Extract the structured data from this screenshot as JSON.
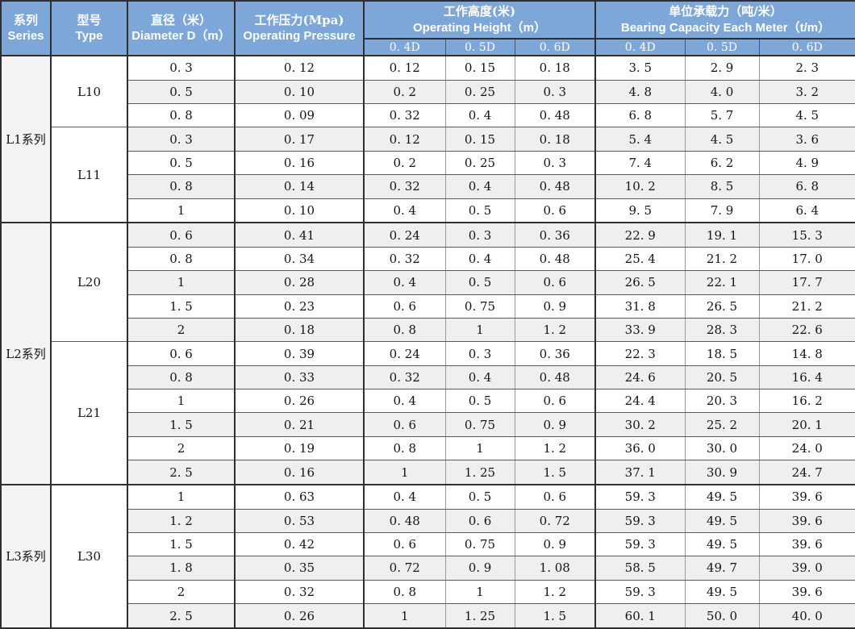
{
  "colors": {
    "header_bg": "#7da6d9",
    "header_text": "#ffffff",
    "row_alt": "#efefef",
    "series_col_bg": "#f3f3f3",
    "grid_line_minor": "#9a9a9a",
    "grid_line_row": "#5a5a5a",
    "grid_line_heavy": "#2f2f2f",
    "text": "#141414"
  },
  "table": {
    "header": {
      "series": {
        "zh": "系列",
        "en": "Series"
      },
      "type": {
        "zh": "型号",
        "en": "Type"
      },
      "diameter": {
        "zh": "直径（米）",
        "en": "Diameter D（m）"
      },
      "pressure": {
        "zh": "工作压力(Mpa)",
        "en": "Operating Pressure"
      },
      "height": {
        "zh": "工作高度(米)",
        "en": "Operating Height（m）",
        "subcols": [
          "0. 4D",
          "0. 5D",
          "0. 6D"
        ]
      },
      "capacity": {
        "zh": "单位承载力（吨/米）",
        "en": "Bearing Capacity Each  Meter（t/m）",
        "subcols": [
          "0. 4D",
          "0. 5D",
          "0. 6D"
        ]
      }
    },
    "groups": [
      {
        "series": "L1系列",
        "types": [
          {
            "type": "L10",
            "rows": [
              [
                "0. 3",
                "0. 12",
                "0. 12",
                "0. 15",
                "0. 18",
                "3. 5",
                "2. 9",
                "2. 3"
              ],
              [
                "0. 5",
                "0. 10",
                "0. 2",
                "0. 25",
                "0. 3",
                "4. 8",
                "4. 0",
                "3. 2"
              ],
              [
                "0. 8",
                "0. 09",
                "0. 32",
                "0. 4",
                "0. 48",
                "6. 8",
                "5. 7",
                "4. 5"
              ]
            ]
          },
          {
            "type": "L11",
            "rows": [
              [
                "0. 3",
                "0. 17",
                "0. 12",
                "0. 15",
                "0. 18",
                "5. 4",
                "4. 5",
                "3. 6"
              ],
              [
                "0. 5",
                "0. 16",
                "0. 2",
                "0. 25",
                "0. 3",
                "7. 4",
                "6. 2",
                "4. 9"
              ],
              [
                "0. 8",
                "0. 14",
                "0. 32",
                "0. 4",
                "0. 48",
                "10. 2",
                "8. 5",
                "6. 8"
              ],
              [
                "1",
                "0. 10",
                "0. 4",
                "0. 5",
                "0. 6",
                "9. 5",
                "7. 9",
                "6. 4"
              ]
            ]
          }
        ]
      },
      {
        "series": "L2系列",
        "types": [
          {
            "type": "L20",
            "rows": [
              [
                "0. 6",
                "0. 41",
                "0. 24",
                "0. 3",
                "0. 36",
                "22. 9",
                "19. 1",
                "15. 3"
              ],
              [
                "0. 8",
                "0. 34",
                "0. 32",
                "0. 4",
                "0. 48",
                "25. 4",
                "21. 2",
                "17. 0"
              ],
              [
                "1",
                "0. 28",
                "0. 4",
                "0. 5",
                "0. 6",
                "26. 5",
                "22. 1",
                "17. 7"
              ],
              [
                "1. 5",
                "0. 23",
                "0. 6",
                "0. 75",
                "0. 9",
                "31. 8",
                "26. 5",
                "21. 2"
              ],
              [
                "2",
                "0. 18",
                "0. 8",
                "1",
                "1. 2",
                "33. 9",
                "28. 3",
                "22. 6"
              ]
            ]
          },
          {
            "type": "L21",
            "rows": [
              [
                "0. 6",
                "0. 39",
                "0. 24",
                "0. 3",
                "0. 36",
                "22. 3",
                "18. 5",
                "14. 8"
              ],
              [
                "0. 8",
                "0. 33",
                "0. 32",
                "0. 4",
                "0. 48",
                "24. 6",
                "20. 5",
                "16. 4"
              ],
              [
                "1",
                "0. 26",
                "0. 4",
                "0. 5",
                "0. 6",
                "24. 4",
                "20. 3",
                "16. 2"
              ],
              [
                "1. 5",
                "0. 21",
                "0. 6",
                "0. 75",
                "0. 9",
                "30. 2",
                "25. 2",
                "20. 1"
              ],
              [
                "2",
                "0. 19",
                "0. 8",
                "1",
                "1. 2",
                "36. 0",
                "30. 0",
                "24. 0"
              ],
              [
                "2. 5",
                "0. 16",
                "1",
                "1. 25",
                "1. 5",
                "37. 1",
                "30. 9",
                "24. 7"
              ]
            ]
          }
        ]
      },
      {
        "series": "L3系列",
        "types": [
          {
            "type": "L30",
            "rows": [
              [
                "1",
                "0. 63",
                "0. 4",
                "0. 5",
                "0. 6",
                "59. 3",
                "49. 5",
                "39. 6"
              ],
              [
                "1. 2",
                "0. 53",
                "0. 48",
                "0. 6",
                "0. 72",
                "59. 3",
                "49. 5",
                "39. 6"
              ],
              [
                "1. 5",
                "0. 42",
                "0. 6",
                "0. 75",
                "0. 9",
                "59. 3",
                "49. 5",
                "39. 6"
              ],
              [
                "1. 8",
                "0. 35",
                "0. 72",
                "0. 9",
                "1. 08",
                "58. 5",
                "49. 7",
                "39. 0"
              ],
              [
                "2",
                "0. 32",
                "0. 8",
                "1",
                "1. 2",
                "59. 3",
                "49. 5",
                "39. 6"
              ],
              [
                "2. 5",
                "0. 26",
                "1",
                "1. 25",
                "1. 5",
                "60. 1",
                "50. 0",
                "40. 0"
              ]
            ]
          }
        ]
      }
    ]
  }
}
